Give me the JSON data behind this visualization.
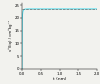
{
  "title": "",
  "xlabel": "t (nm)",
  "ylabel": "v³(liq) / cm³kg⁻¹",
  "xlim": [
    0,
    2.0
  ],
  "ylim": [
    0,
    26
  ],
  "yticks": [
    0,
    5,
    10,
    15,
    20,
    25
  ],
  "xticks": [
    0,
    0.5,
    1.0,
    1.5,
    2.0
  ],
  "curve_color": "#44ddee",
  "dashed_color": "#555555",
  "asymptote": 23.5,
  "background_color": "#f2f2ee",
  "curve_k": 20.0,
  "curve_n": 0.5
}
